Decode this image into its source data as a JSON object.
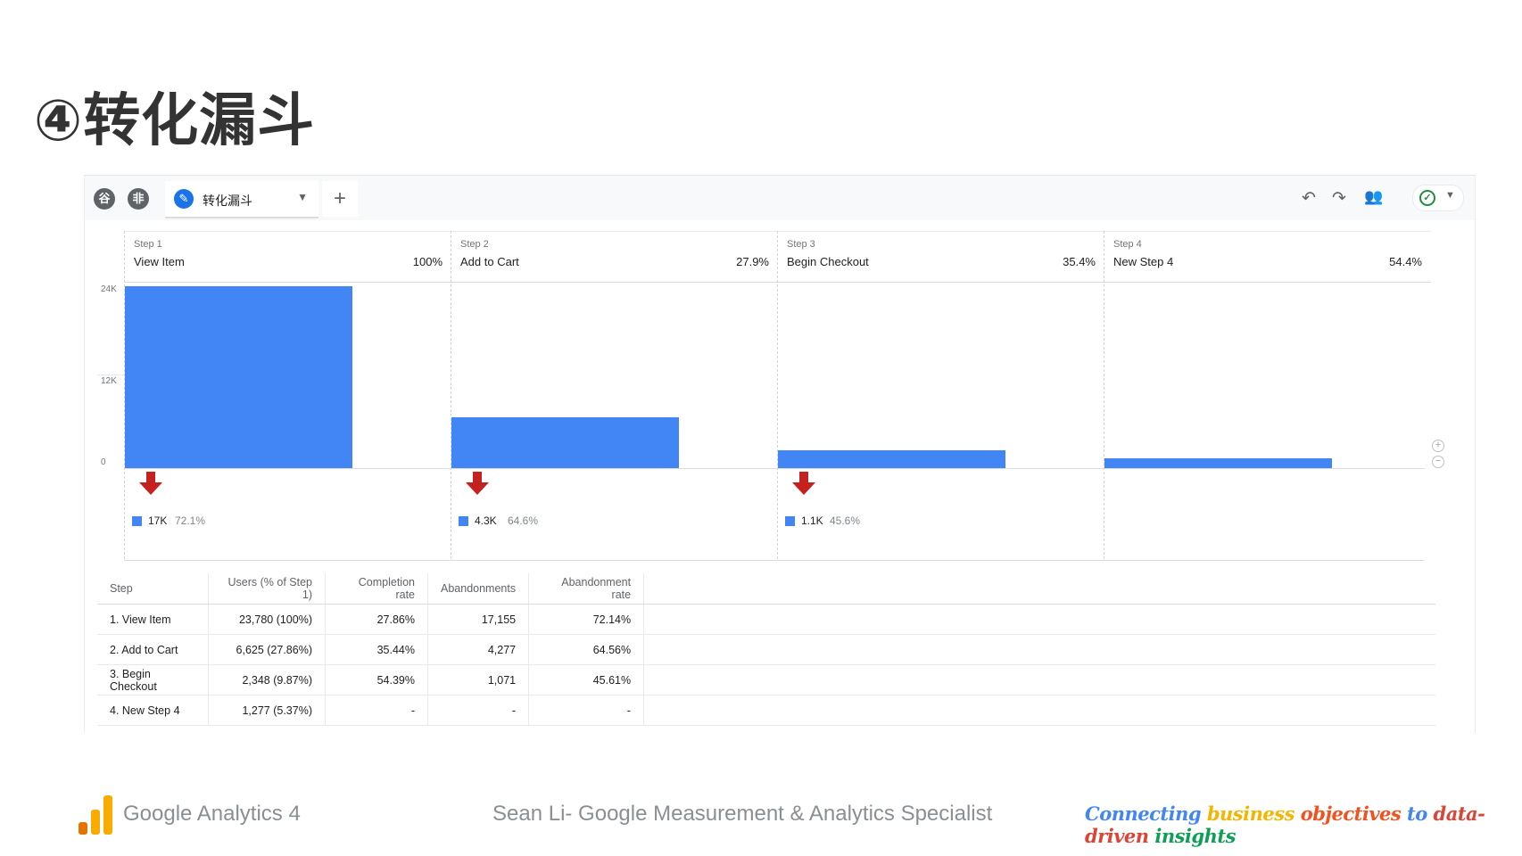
{
  "slide": {
    "title": "④转化漏斗"
  },
  "toolbar": {
    "segment_icons": [
      {
        "icon": "compare-icon",
        "glyph": "谷"
      },
      {
        "icon": "segment-icon",
        "glyph": "非"
      }
    ],
    "tab_label": "转化漏斗",
    "tab_icon": "pencil-icon",
    "add_tab_icon": "plus-icon",
    "right_icons": [
      "undo-icon",
      "redo-icon",
      "share-users-icon",
      "check-circle-icon"
    ]
  },
  "chart_data": {
    "type": "bar",
    "categories": [
      "View Item",
      "Add to Cart",
      "Begin Checkout",
      "New Step 4"
    ],
    "step_numbers": [
      "Step 1",
      "Step 2",
      "Step 3",
      "Step 4"
    ],
    "step_pcts": [
      "100%",
      "27.9%",
      "35.4%",
      "54.4%"
    ],
    "values": [
      23780,
      6625,
      2348,
      1277
    ],
    "ylim": [
      0,
      24000
    ],
    "y_ticks": [
      "24K",
      "12K",
      "0"
    ],
    "y_tick_values": [
      24000,
      12000,
      0
    ],
    "dropoffs": [
      {
        "count": "17K",
        "rate": "72.1%"
      },
      {
        "count": "4.3K",
        "rate": "64.6%"
      },
      {
        "count": "1.1K",
        "rate": "45.6%"
      }
    ],
    "colors": {
      "bar": "#4285f4",
      "drop_arrow": "#c5221f"
    }
  },
  "table": {
    "headers": [
      "Step",
      "Users (% of Step 1)",
      "Completion rate",
      "Abandonments",
      "Abandonment rate"
    ],
    "rows": [
      [
        "1. View Item",
        "23,780 (100%)",
        "27.86%",
        "17,155",
        "72.14%"
      ],
      [
        "2. Add to Cart",
        "6,625 (27.86%)",
        "35.44%",
        "4,277",
        "64.56%"
      ],
      [
        "3. Begin Checkout",
        "2,348 (9.87%)",
        "54.39%",
        "1,071",
        "45.61%"
      ],
      [
        "4. New Step 4",
        "1,277 (5.37%)",
        "-",
        "-",
        "-"
      ]
    ]
  },
  "footer": {
    "product": "Google Analytics 4",
    "author": "Sean Li- Google Measurement & Analytics Specialist",
    "slogan_words": [
      {
        "text": "Connecting",
        "color": "#4285f4"
      },
      {
        "text": "business",
        "color": "#f4b400"
      },
      {
        "text": "objectives",
        "color": "#f4511e"
      },
      {
        "text": "to",
        "color": "#4285f4"
      },
      {
        "text": "data-driven",
        "color": "#db4437"
      },
      {
        "text": "insights",
        "color": "#0f9d58"
      }
    ],
    "logo_colors": [
      "#e37400",
      "#f9ab00",
      "#f9ab00"
    ]
  }
}
